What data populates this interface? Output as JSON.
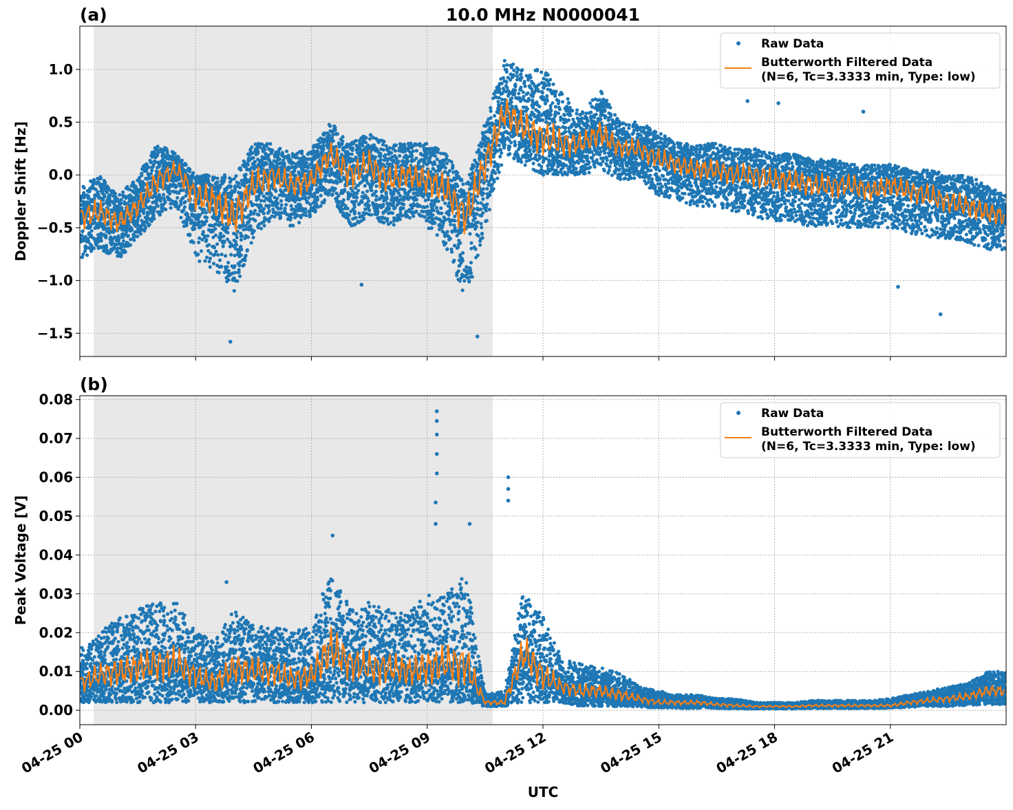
{
  "title": "10.0 MHz N0000041",
  "xlabel": "UTC",
  "x_tick_labels": [
    "04-25 00",
    "04-25 03",
    "04-25 06",
    "04-25 09",
    "04-25 12",
    "04-25 15",
    "04-25 18",
    "04-25 21"
  ],
  "x_tick_hours": [
    0,
    3,
    6,
    9,
    12,
    15,
    18,
    21
  ],
  "xlim_hours": [
    0,
    24
  ],
  "shaded_region_hours": [
    0.36,
    10.7
  ],
  "colors": {
    "raw": "#1f77b4",
    "filtered": "#ff7f0e",
    "shade": "#e8e8e8",
    "grid": "#b0b0b0"
  },
  "legend": {
    "raw": "Raw Data",
    "filtered_line1": "Butterworth Filtered Data",
    "filtered_line2": "(N=6, Tc=3.3333 min, Type: low)",
    "placement": "top-right"
  },
  "chart_data": [
    {
      "type": "scatter+line",
      "panel_label": "(a)",
      "ylabel": "Doppler Shift [Hz]",
      "ylim": [
        -1.72,
        1.41
      ],
      "y_ticks": [
        1.0,
        0.5,
        0.0,
        -0.5,
        -1.0,
        -1.5
      ],
      "y_tick_labels": [
        "1.0",
        "0.5",
        "0.0",
        "−0.5",
        "−1.0",
        "−1.5"
      ],
      "grid": true,
      "x_hours_step": 0.5,
      "filtered": [
        -0.4,
        -0.35,
        -0.45,
        -0.3,
        -0.05,
        0.05,
        -0.2,
        -0.25,
        -0.4,
        -0.1,
        0.0,
        -0.1,
        -0.05,
        0.2,
        0.0,
        0.1,
        -0.05,
        0.0,
        -0.05,
        -0.15,
        -0.4,
        0.1,
        0.6,
        0.45,
        0.35,
        0.3,
        0.3,
        0.4,
        0.25,
        0.25,
        0.15,
        0.1,
        0.05,
        0.05,
        0.0,
        0.0,
        -0.05,
        -0.05,
        -0.1,
        -0.1,
        -0.1,
        -0.15,
        -0.1,
        -0.15,
        -0.2,
        -0.25,
        -0.3,
        -0.35,
        -0.4
      ],
      "raw_upper": [
        -0.1,
        0.0,
        -0.2,
        0.0,
        0.3,
        0.2,
        0.0,
        0.0,
        0.0,
        0.3,
        0.3,
        0.2,
        0.25,
        0.5,
        0.3,
        0.4,
        0.3,
        0.3,
        0.3,
        0.2,
        -0.1,
        0.5,
        1.1,
        1.0,
        1.0,
        0.8,
        0.6,
        0.8,
        0.5,
        0.5,
        0.4,
        0.3,
        0.3,
        0.3,
        0.25,
        0.25,
        0.2,
        0.2,
        0.15,
        0.15,
        0.1,
        0.1,
        0.1,
        0.05,
        0.05,
        0.0,
        0.0,
        -0.1,
        -0.2
      ],
      "raw_lower": [
        -0.8,
        -0.7,
        -0.8,
        -0.6,
        -0.4,
        -0.3,
        -0.8,
        -0.9,
        -1.1,
        -0.6,
        -0.4,
        -0.5,
        -0.4,
        -0.2,
        -0.5,
        -0.4,
        -0.5,
        -0.4,
        -0.5,
        -0.7,
        -1.2,
        -0.5,
        0.2,
        0.1,
        0.0,
        0.0,
        0.0,
        0.05,
        -0.05,
        -0.05,
        -0.2,
        -0.25,
        -0.3,
        -0.3,
        -0.35,
        -0.4,
        -0.45,
        -0.45,
        -0.5,
        -0.5,
        -0.5,
        -0.5,
        -0.5,
        -0.55,
        -0.6,
        -0.6,
        -0.65,
        -0.7,
        -0.75
      ],
      "outliers": [
        [
          3.9,
          -1.58
        ],
        [
          10.3,
          -1.53
        ],
        [
          22.3,
          -1.32
        ],
        [
          21.2,
          -1.06
        ],
        [
          7.3,
          -1.04
        ],
        [
          20.3,
          0.6
        ],
        [
          18.1,
          0.68
        ],
        [
          17.3,
          0.7
        ]
      ]
    },
    {
      "type": "scatter+line",
      "panel_label": "(b)",
      "ylabel": "Peak Voltage [V]",
      "ylim": [
        -0.0037,
        0.081
      ],
      "y_ticks": [
        0.0,
        0.01,
        0.02,
        0.03,
        0.04,
        0.05,
        0.06,
        0.07,
        0.08
      ],
      "y_tick_labels": [
        "0.00",
        "0.01",
        "0.02",
        "0.03",
        "0.04",
        "0.05",
        "0.06",
        "0.07",
        "0.08"
      ],
      "grid": true,
      "x_hours_step": 0.5,
      "filtered": [
        0.007,
        0.009,
        0.01,
        0.011,
        0.012,
        0.012,
        0.009,
        0.007,
        0.011,
        0.01,
        0.01,
        0.008,
        0.009,
        0.016,
        0.012,
        0.011,
        0.011,
        0.01,
        0.011,
        0.012,
        0.012,
        0.002,
        0.002,
        0.015,
        0.009,
        0.006,
        0.005,
        0.005,
        0.004,
        0.003,
        0.002,
        0.002,
        0.002,
        0.0015,
        0.0012,
        0.001,
        0.001,
        0.001,
        0.0012,
        0.0012,
        0.0012,
        0.0012,
        0.0012,
        0.002,
        0.0025,
        0.003,
        0.0035,
        0.005,
        0.005
      ],
      "raw_upper": [
        0.016,
        0.02,
        0.024,
        0.026,
        0.028,
        0.028,
        0.02,
        0.018,
        0.026,
        0.022,
        0.022,
        0.02,
        0.022,
        0.036,
        0.027,
        0.028,
        0.026,
        0.025,
        0.03,
        0.03,
        0.035,
        0.004,
        0.005,
        0.032,
        0.024,
        0.013,
        0.012,
        0.011,
        0.01,
        0.006,
        0.005,
        0.004,
        0.004,
        0.003,
        0.003,
        0.002,
        0.002,
        0.002,
        0.0025,
        0.0025,
        0.0025,
        0.0025,
        0.003,
        0.004,
        0.005,
        0.006,
        0.007,
        0.01,
        0.01
      ],
      "raw_lower": [
        0.002,
        0.002,
        0.002,
        0.002,
        0.002,
        0.002,
        0.002,
        0.002,
        0.002,
        0.002,
        0.002,
        0.002,
        0.002,
        0.002,
        0.002,
        0.002,
        0.002,
        0.002,
        0.002,
        0.002,
        0.002,
        0.001,
        0.001,
        0.002,
        0.002,
        0.002,
        0.001,
        0.001,
        0.001,
        0.0008,
        0.0006,
        0.0005,
        0.0005,
        0.0005,
        0.0004,
        0.0004,
        0.0004,
        0.0004,
        0.0005,
        0.0005,
        0.0005,
        0.0005,
        0.0006,
        0.0008,
        0.001,
        0.001,
        0.0012,
        0.0015,
        0.0015
      ],
      "outliers": [
        [
          9.25,
          0.077
        ],
        [
          9.25,
          0.0745
        ],
        [
          9.25,
          0.071
        ],
        [
          9.25,
          0.066
        ],
        [
          9.25,
          0.061
        ],
        [
          9.22,
          0.0535
        ],
        [
          9.22,
          0.048
        ],
        [
          11.1,
          0.06
        ],
        [
          11.1,
          0.057
        ],
        [
          11.1,
          0.054
        ],
        [
          10.1,
          0.048
        ],
        [
          6.55,
          0.045
        ],
        [
          3.8,
          0.033
        ]
      ]
    }
  ]
}
